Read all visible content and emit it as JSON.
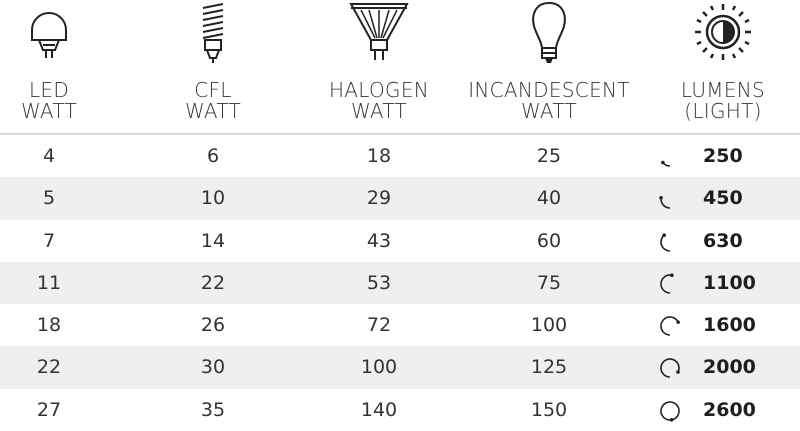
{
  "columns": [
    {
      "icon": "led-bulb-icon",
      "label_line1": "LED",
      "label_line2": "WATT"
    },
    {
      "icon": "cfl-bulb-icon",
      "label_line1": "CFL",
      "label_line2": "WATT"
    },
    {
      "icon": "halogen-bulb-icon",
      "label_line1": "HALOGEN",
      "label_line2": "WATT"
    },
    {
      "icon": "incandescent-bulb-icon",
      "label_line1": "INCANDESCENT",
      "label_line2": "WATT"
    },
    {
      "icon": "sun-brightness-icon",
      "label_line1": "LUMENS",
      "label_line2": "(LIGHT)"
    }
  ],
  "rows": [
    {
      "led": "4",
      "cfl": "6",
      "halogen": "18",
      "incandescent": "25",
      "lumens": "250",
      "level": 0.15
    },
    {
      "led": "5",
      "cfl": "10",
      "halogen": "29",
      "incandescent": "40",
      "lumens": "450",
      "level": 0.28
    },
    {
      "led": "7",
      "cfl": "14",
      "halogen": "43",
      "incandescent": "60",
      "lumens": "630",
      "level": 0.4
    },
    {
      "led": "11",
      "cfl": "22",
      "halogen": "53",
      "incandescent": "75",
      "lumens": "1100",
      "level": 0.55
    },
    {
      "led": "18",
      "cfl": "26",
      "halogen": "72",
      "incandescent": "100",
      "lumens": "1600",
      "level": 0.7
    },
    {
      "led": "22",
      "cfl": "30",
      "halogen": "100",
      "incandescent": "125",
      "lumens": "2000",
      "level": 0.85
    },
    {
      "led": "27",
      "cfl": "35",
      "halogen": "140",
      "incandescent": "150",
      "lumens": "2600",
      "level": 1.0
    }
  ],
  "colors": {
    "row_alt": "#efefef",
    "text": "#333333",
    "rule": "#d9d9d9"
  }
}
